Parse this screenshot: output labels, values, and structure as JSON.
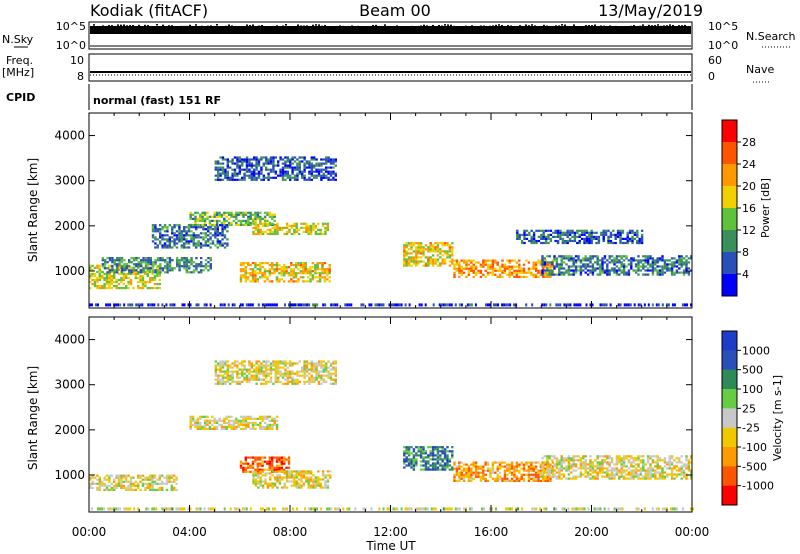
{
  "header": {
    "station": "Kodiak (fitACF)",
    "beam": "Beam 00",
    "date": "13/May/2019"
  },
  "status_panels": {
    "nsky_label": "N.Sky",
    "nsky_ticks": [
      "10^5",
      "10^0"
    ],
    "nsearch_label": "N.Search",
    "nsearch_ticks": [
      "10^5",
      "10^0"
    ],
    "freq_label": "Freq.",
    "freq_unit": "[MHz]",
    "freq_ticks": [
      "10",
      "8"
    ],
    "nave_label": "Nave",
    "nave_ticks": [
      "60",
      "0"
    ],
    "cpid_label": "CPID",
    "cpid_value": "normal (fast) 151 RF"
  },
  "axes": {
    "xlabel": "Time UT",
    "ylabel": "Slant Range [km]",
    "x_ticks": [
      "00:00",
      "04:00",
      "08:00",
      "12:00",
      "16:00",
      "20:00",
      "00:00"
    ],
    "y_ticks": [
      "1000",
      "2000",
      "3000",
      "4000"
    ]
  },
  "colors": {
    "power_scale": [
      "#0000ff",
      "#2a4fb8",
      "#3b8f5a",
      "#5fc23b",
      "#f0d000",
      "#ff9900",
      "#ff5500",
      "#ff0000"
    ],
    "velocity_scale": [
      "#ff0000",
      "#ff5500",
      "#ff9900",
      "#f0c800",
      "#c8c8c8",
      "#66cc44",
      "#2e8b57",
      "#2a4fb8",
      "#1e3cc8"
    ]
  },
  "chart_data": [
    {
      "type": "heatmap",
      "panel": "power",
      "xlabel": "Time UT",
      "ylabel": "Slant Range [km]",
      "xlim": [
        0,
        24
      ],
      "ylim": [
        180,
        4500
      ],
      "colorbar": {
        "label": "Power [dB]",
        "ticks": [
          "4",
          "8",
          "12",
          "16",
          "20",
          "24",
          "28"
        ]
      },
      "regions": [
        {
          "t": [
            0.0,
            2.8
          ],
          "r": [
            600,
            1100
          ],
          "level": 0.55
        },
        {
          "t": [
            0.5,
            4.8
          ],
          "r": [
            950,
            1300
          ],
          "level": 0.3
        },
        {
          "t": [
            2.5,
            5.5
          ],
          "r": [
            1500,
            2000
          ],
          "level": 0.25
        },
        {
          "t": [
            4.0,
            7.5
          ],
          "r": [
            2000,
            2300
          ],
          "level": 0.4
        },
        {
          "t": [
            6.5,
            9.5
          ],
          "r": [
            1800,
            2050
          ],
          "level": 0.55
        },
        {
          "t": [
            6.0,
            9.6
          ],
          "r": [
            750,
            1200
          ],
          "level": 0.6
        },
        {
          "t": [
            5.0,
            9.8
          ],
          "r": [
            3000,
            3500
          ],
          "level": 0.2
        },
        {
          "t": [
            12.5,
            14.5
          ],
          "r": [
            1100,
            1600
          ],
          "level": 0.6
        },
        {
          "t": [
            14.5,
            18.5
          ],
          "r": [
            850,
            1250
          ],
          "level": 0.7
        },
        {
          "t": [
            18.0,
            24.0
          ],
          "r": [
            900,
            1350
          ],
          "level": 0.25
        },
        {
          "t": [
            17.0,
            22.0
          ],
          "r": [
            1600,
            1900
          ],
          "level": 0.2
        }
      ]
    },
    {
      "type": "heatmap",
      "panel": "velocity",
      "xlabel": "Time UT",
      "ylabel": "Slant Range [km]",
      "xlim": [
        0,
        24
      ],
      "ylim": [
        180,
        4500
      ],
      "colorbar": {
        "label": "Velocity [m s-1]",
        "ticks": [
          "1000",
          "500",
          "100",
          "25",
          "-25",
          "-100",
          "-500",
          "-1000"
        ]
      },
      "regions": [
        {
          "t": [
            0.0,
            3.5
          ],
          "r": [
            650,
            1000
          ],
          "level": 0.45
        },
        {
          "t": [
            4.0,
            7.5
          ],
          "r": [
            2000,
            2300
          ],
          "level": 0.45
        },
        {
          "t": [
            6.0,
            8.0
          ],
          "r": [
            1050,
            1400
          ],
          "level": 0.2
        },
        {
          "t": [
            6.5,
            9.6
          ],
          "r": [
            700,
            1100
          ],
          "level": 0.45
        },
        {
          "t": [
            5.0,
            9.8
          ],
          "r": [
            3000,
            3500
          ],
          "level": 0.45
        },
        {
          "t": [
            12.5,
            14.5
          ],
          "r": [
            1100,
            1600
          ],
          "level": 0.75
        },
        {
          "t": [
            14.5,
            18.5
          ],
          "r": [
            850,
            1300
          ],
          "level": 0.3
        },
        {
          "t": [
            18.0,
            24.0
          ],
          "r": [
            900,
            1400
          ],
          "level": 0.45
        }
      ]
    }
  ]
}
